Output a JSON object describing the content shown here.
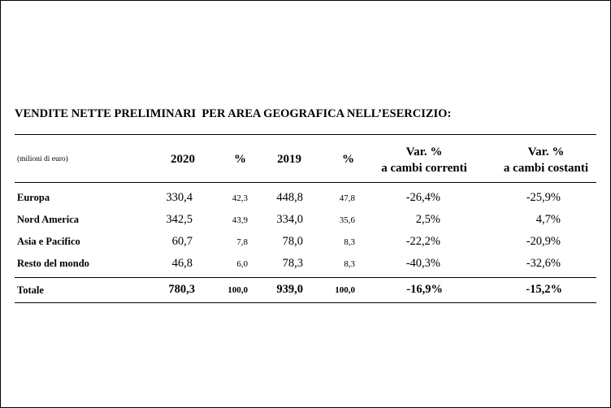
{
  "title": "VENDITE NETTE PRELIMINARI  PER AREA GEOGRAFICA NELL’ESERCIZIO:",
  "header": {
    "unit": "(milioni di euro)",
    "col_2020": "2020",
    "col_pct1": "%",
    "col_2019": "2019",
    "col_pct2": "%",
    "var_curr_line1": "Var. %",
    "var_curr_line2": "a cambi correnti",
    "var_const_line1": "Var. %",
    "var_const_line2": "a cambi costanti"
  },
  "rows": [
    {
      "label": "Europa",
      "v2020": "330,4",
      "p2020": "42,3",
      "v2019": "448,8",
      "p2019": "47,8",
      "var_curr": "-26,4%",
      "var_const": "-25,9%"
    },
    {
      "label": "Nord America",
      "v2020": "342,5",
      "p2020": "43,9",
      "v2019": "334,0",
      "p2019": "35,6",
      "var_curr": "2,5%",
      "var_const": "4,7%"
    },
    {
      "label": "Asia e Pacifico",
      "v2020": "60,7",
      "p2020": "7,8",
      "v2019": "78,0",
      "p2019": "8,3",
      "var_curr": "-22,2%",
      "var_const": "-20,9%"
    },
    {
      "label": "Resto del mondo",
      "v2020": "46,8",
      "p2020": "6,0",
      "v2019": "78,3",
      "p2019": "8,3",
      "var_curr": "-40,3%",
      "var_const": "-32,6%"
    }
  ],
  "total": {
    "label": "Totale",
    "v2020": "780,3",
    "p2020": "100,0",
    "v2019": "939,0",
    "p2019": "100,0",
    "var_curr": "-16,9%",
    "var_const": "-15,2%"
  }
}
